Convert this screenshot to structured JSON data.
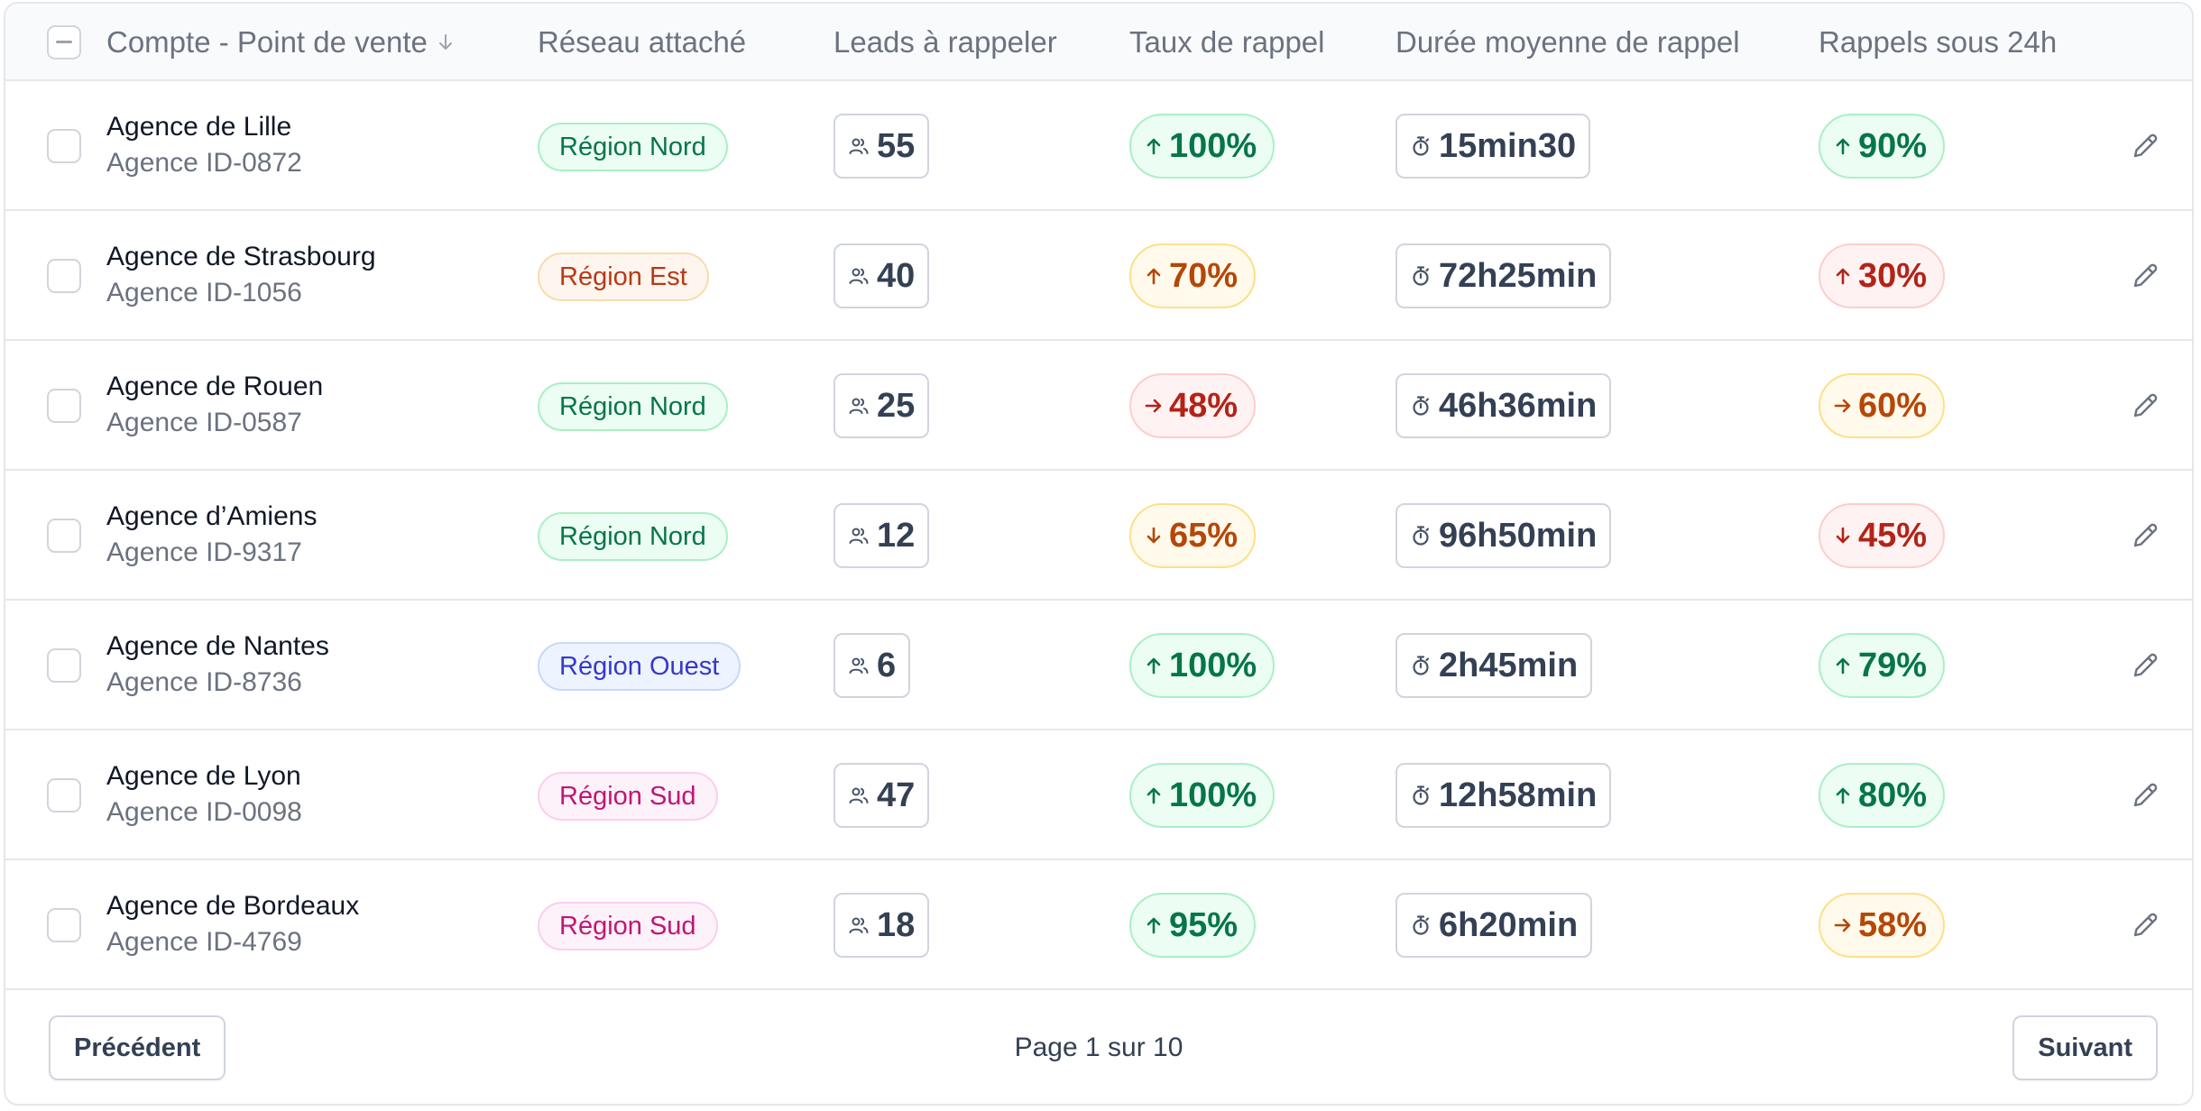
{
  "table": {
    "columns": {
      "account": "Compte - Point de vente",
      "network": "Réseau attaché",
      "leads": "Leads à rappeler",
      "rate": "Taux de rappel",
      "duration": "Durée moyenne de rappel",
      "within24": "Rappels sous 24h"
    },
    "sort_icon": "arrow-down-icon",
    "rows": [
      {
        "name": "Agence de Lille",
        "id": "Agence ID-0872",
        "region": "Région Nord",
        "region_color": "green",
        "leads": "55",
        "rate": "100%",
        "rate_trend": "up",
        "rate_color": "green",
        "duration": "15min30",
        "within24": "90%",
        "within24_trend": "up",
        "within24_color": "green"
      },
      {
        "name": "Agence de Strasbourg",
        "id": "Agence ID-1056",
        "region": "Région Est",
        "region_color": "orange",
        "leads": "40",
        "rate": "70%",
        "rate_trend": "up",
        "rate_color": "orange",
        "duration": "72h25min",
        "within24": "30%",
        "within24_trend": "up",
        "within24_color": "red"
      },
      {
        "name": "Agence de Rouen",
        "id": "Agence ID-0587",
        "region": "Région Nord",
        "region_color": "green",
        "leads": "25",
        "rate": "48%",
        "rate_trend": "right",
        "rate_color": "red",
        "duration": "46h36min",
        "within24": "60%",
        "within24_trend": "right",
        "within24_color": "orange"
      },
      {
        "name": "Agence d’Amiens",
        "id": "Agence ID-9317",
        "region": "Région Nord",
        "region_color": "green",
        "leads": "12",
        "rate": "65%",
        "rate_trend": "down",
        "rate_color": "orange",
        "duration": "96h50min",
        "within24": "45%",
        "within24_trend": "down",
        "within24_color": "red"
      },
      {
        "name": "Agence de Nantes",
        "id": "Agence ID-8736",
        "region": "Région Ouest",
        "region_color": "blue",
        "leads": "6",
        "rate": "100%",
        "rate_trend": "up",
        "rate_color": "green",
        "duration": "2h45min",
        "within24": "79%",
        "within24_trend": "up",
        "within24_color": "green"
      },
      {
        "name": "Agence de Lyon",
        "id": "Agence ID-0098",
        "region": "Région Sud",
        "region_color": "pink",
        "leads": "47",
        "rate": "100%",
        "rate_trend": "up",
        "rate_color": "green",
        "duration": "12h58min",
        "within24": "80%",
        "within24_trend": "up",
        "within24_color": "green"
      },
      {
        "name": "Agence de Bordeaux",
        "id": "Agence ID-4769",
        "region": "Région Sud",
        "region_color": "pink",
        "leads": "18",
        "rate": "95%",
        "rate_trend": "up",
        "rate_color": "green",
        "duration": "6h20min",
        "within24": "58%",
        "within24_trend": "right",
        "within24_color": "orange"
      }
    ]
  },
  "pagination": {
    "prev_label": "Précédent",
    "page_info": "Page 1 sur 10",
    "next_label": "Suivant"
  },
  "icons": {
    "leads": "users-icon",
    "duration": "stopwatch-icon",
    "edit": "pencil-icon"
  }
}
